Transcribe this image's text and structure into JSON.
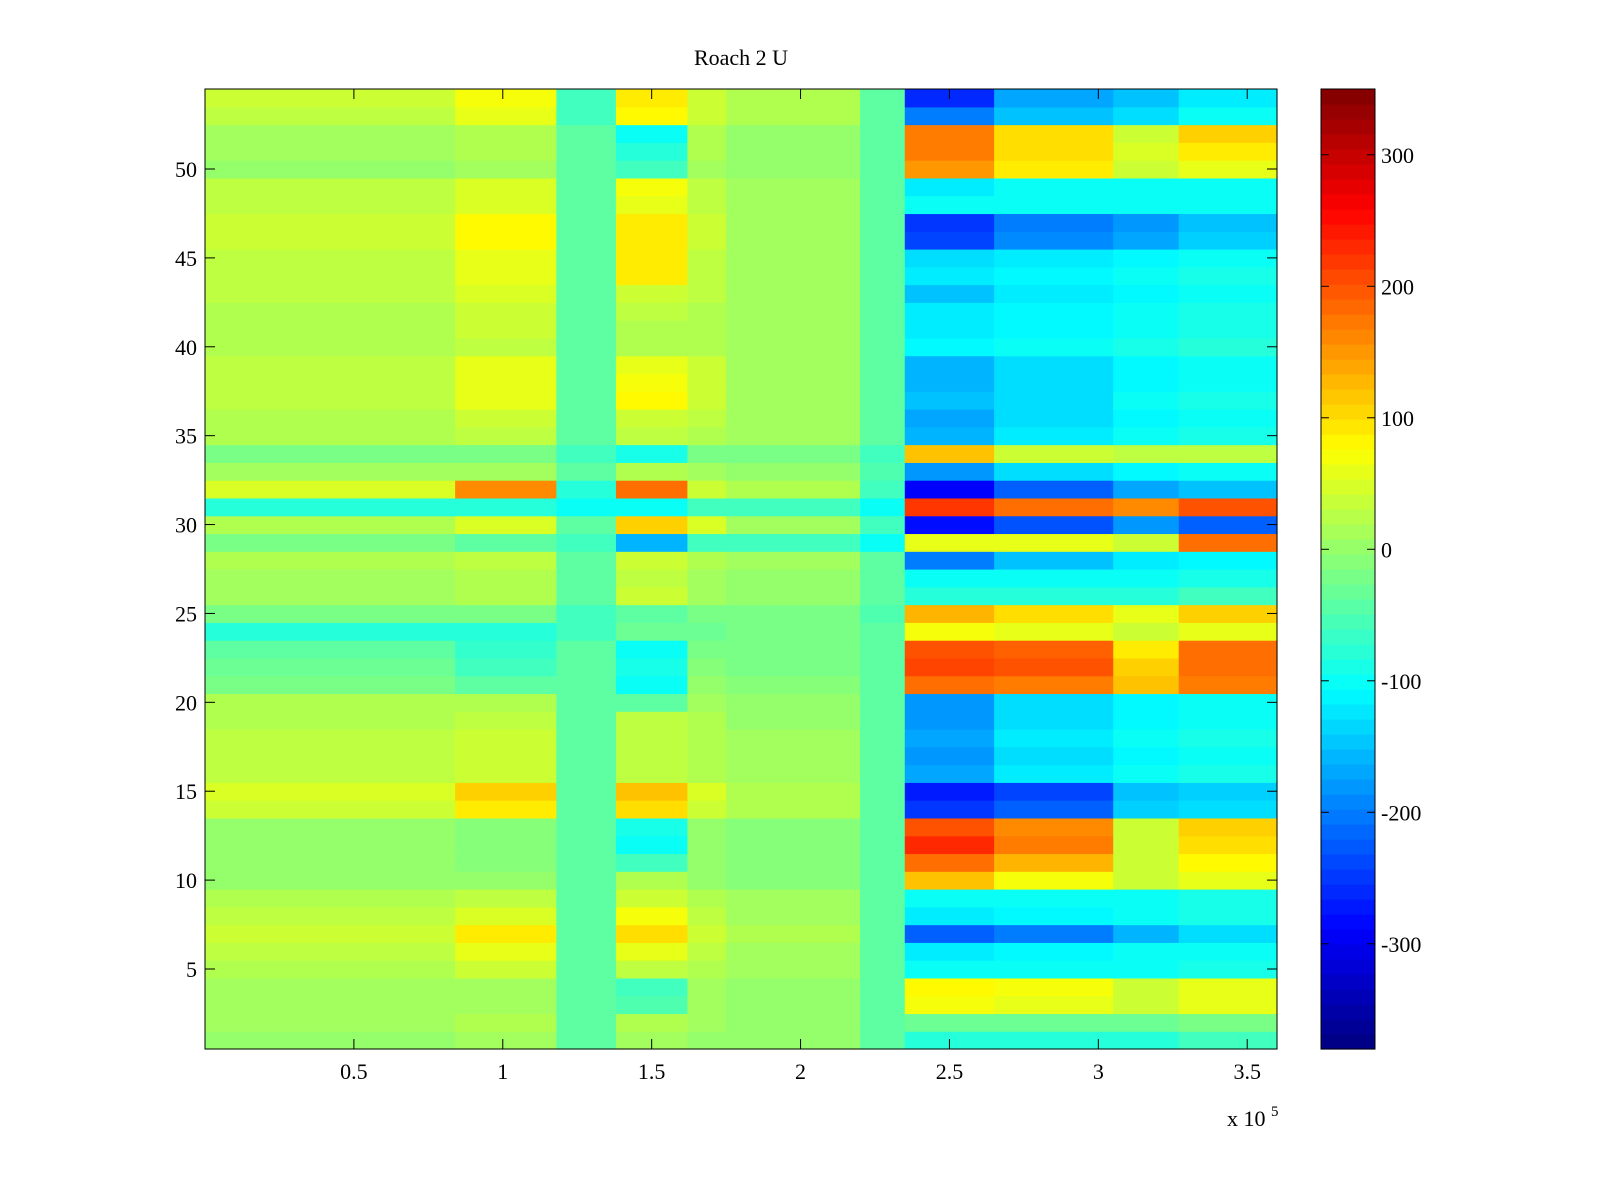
{
  "chart_data": {
    "type": "heatmap",
    "title": "Roach 2 U",
    "xlabel": "",
    "ylabel": "",
    "x_exponent_label": "x 10",
    "x_exponent_power": "5",
    "xlim": [
      0,
      360000
    ],
    "ylim": [
      0.5,
      54.5
    ],
    "x_ticks": [
      {
        "value": 50000,
        "label": "0.5"
      },
      {
        "value": 100000,
        "label": "1"
      },
      {
        "value": 150000,
        "label": "1.5"
      },
      {
        "value": 200000,
        "label": "2"
      },
      {
        "value": 250000,
        "label": "2.5"
      },
      {
        "value": 300000,
        "label": "3"
      },
      {
        "value": 350000,
        "label": "3.5"
      }
    ],
    "y_ticks": [
      {
        "value": 5,
        "label": "5"
      },
      {
        "value": 10,
        "label": "10"
      },
      {
        "value": 15,
        "label": "15"
      },
      {
        "value": 20,
        "label": "20"
      },
      {
        "value": 25,
        "label": "25"
      },
      {
        "value": 30,
        "label": "30"
      },
      {
        "value": 35,
        "label": "35"
      },
      {
        "value": 40,
        "label": "40"
      },
      {
        "value": 45,
        "label": "45"
      },
      {
        "value": 50,
        "label": "50"
      }
    ],
    "colorbar": {
      "colormap": "jet",
      "clim": [
        -380,
        350
      ],
      "ticks": [
        {
          "value": 300,
          "label": "300"
        },
        {
          "value": 200,
          "label": "200"
        },
        {
          "value": 100,
          "label": "100"
        },
        {
          "value": 0,
          "label": "0"
        },
        {
          "value": -100,
          "label": "-100"
        },
        {
          "value": -200,
          "label": "-200"
        },
        {
          "value": -300,
          "label": "-300"
        }
      ]
    },
    "rows": 54,
    "x_segment_edges": [
      0,
      84000,
      118000,
      138000,
      162000,
      175000,
      220000,
      235000,
      265000,
      305000,
      327000,
      360000
    ],
    "row_segment_values": {
      "54": [
        40,
        70,
        -60,
        90,
        40,
        20,
        -40,
        -260,
        -170,
        -150,
        -120
      ],
      "53": [
        30,
        60,
        -60,
        80,
        40,
        20,
        -40,
        -200,
        -150,
        -130,
        -100
      ],
      "52": [
        10,
        20,
        -40,
        -100,
        20,
        0,
        -40,
        170,
        100,
        40,
        110
      ],
      "51": [
        10,
        20,
        -40,
        -80,
        20,
        0,
        -40,
        170,
        100,
        50,
        90
      ],
      "50": [
        0,
        10,
        -40,
        -60,
        10,
        0,
        -40,
        150,
        90,
        40,
        60
      ],
      "49": [
        30,
        50,
        -40,
        70,
        30,
        10,
        -40,
        -120,
        -100,
        -100,
        -100
      ],
      "48": [
        30,
        50,
        -40,
        60,
        30,
        10,
        -40,
        -100,
        -100,
        -100,
        -100
      ],
      "47": [
        40,
        80,
        -40,
        90,
        40,
        10,
        -40,
        -250,
        -200,
        -180,
        -150
      ],
      "46": [
        40,
        80,
        -40,
        90,
        40,
        10,
        -40,
        -240,
        -190,
        -170,
        -140
      ],
      "45": [
        30,
        60,
        -40,
        90,
        30,
        10,
        -40,
        -130,
        -120,
        -110,
        -100
      ],
      "44": [
        30,
        60,
        -40,
        90,
        30,
        10,
        -40,
        -120,
        -110,
        -100,
        -90
      ],
      "43": [
        30,
        50,
        -40,
        40,
        30,
        10,
        -40,
        -150,
        -120,
        -110,
        -100
      ],
      "42": [
        20,
        40,
        -40,
        30,
        20,
        10,
        -40,
        -120,
        -110,
        -100,
        -90
      ],
      "41": [
        20,
        40,
        -40,
        20,
        20,
        10,
        -40,
        -120,
        -110,
        -100,
        -90
      ],
      "40": [
        20,
        30,
        -40,
        20,
        20,
        10,
        -40,
        -110,
        -100,
        -90,
        -80
      ],
      "39": [
        30,
        60,
        -40,
        60,
        40,
        10,
        -40,
        -160,
        -130,
        -110,
        -100
      ],
      "38": [
        30,
        60,
        -40,
        70,
        40,
        10,
        -40,
        -160,
        -130,
        -110,
        -100
      ],
      "37": [
        30,
        60,
        -40,
        80,
        40,
        10,
        -40,
        -150,
        -130,
        -100,
        -90
      ],
      "36": [
        20,
        40,
        -40,
        40,
        30,
        10,
        -40,
        -170,
        -130,
        -110,
        -100
      ],
      "35": [
        20,
        30,
        -40,
        30,
        20,
        10,
        -40,
        -160,
        -120,
        -100,
        -90
      ],
      "34": [
        -20,
        -20,
        -60,
        -90,
        -20,
        -20,
        -60,
        120,
        40,
        30,
        30
      ],
      "33": [
        10,
        10,
        -40,
        20,
        10,
        0,
        -50,
        -180,
        -130,
        -110,
        -100
      ],
      "32": [
        50,
        160,
        -80,
        180,
        40,
        20,
        -60,
        -290,
        -220,
        -170,
        -150
      ],
      "31": [
        -80,
        -80,
        -100,
        -100,
        -60,
        -60,
        -100,
        220,
        180,
        160,
        200
      ],
      "30": [
        20,
        50,
        -40,
        110,
        50,
        10,
        -60,
        -280,
        -230,
        -180,
        -220
      ],
      "29": [
        -20,
        -40,
        -60,
        -160,
        -60,
        -60,
        -100,
        60,
        60,
        40,
        180
      ],
      "28": [
        20,
        30,
        -40,
        40,
        20,
        10,
        -40,
        -200,
        -150,
        -120,
        -110
      ],
      "27": [
        10,
        20,
        -40,
        30,
        10,
        0,
        -40,
        -100,
        -100,
        -100,
        -90
      ],
      "26": [
        10,
        20,
        -40,
        40,
        10,
        0,
        -40,
        -80,
        -80,
        -80,
        -60
      ],
      "25": [
        -20,
        -20,
        -60,
        -40,
        -20,
        -20,
        -50,
        130,
        100,
        60,
        110
      ],
      "24": [
        -80,
        -80,
        -60,
        -30,
        -30,
        -20,
        -40,
        70,
        60,
        40,
        60
      ],
      "23": [
        -40,
        -70,
        -40,
        -100,
        -20,
        -20,
        -40,
        200,
        190,
        90,
        180
      ],
      "22": [
        -30,
        -60,
        -40,
        -90,
        -10,
        -20,
        -40,
        210,
        200,
        110,
        180
      ],
      "21": [
        -20,
        -40,
        -40,
        -100,
        0,
        -10,
        -40,
        180,
        170,
        120,
        170
      ],
      "20": [
        20,
        20,
        -40,
        -40,
        10,
        0,
        -40,
        -180,
        -130,
        -110,
        -100
      ],
      "19": [
        20,
        30,
        -40,
        30,
        20,
        0,
        -40,
        -180,
        -130,
        -110,
        -100
      ],
      "18": [
        30,
        40,
        -40,
        30,
        20,
        10,
        -40,
        -170,
        -120,
        -100,
        -90
      ],
      "17": [
        30,
        40,
        -40,
        30,
        20,
        10,
        -40,
        -180,
        -130,
        -110,
        -100
      ],
      "16": [
        30,
        40,
        -40,
        30,
        20,
        10,
        -40,
        -170,
        -120,
        -100,
        -90
      ],
      "15": [
        50,
        110,
        -40,
        120,
        50,
        20,
        -40,
        -270,
        -240,
        -150,
        -140
      ],
      "14": [
        40,
        90,
        -40,
        100,
        40,
        20,
        -40,
        -250,
        -220,
        -140,
        -130
      ],
      "13": [
        0,
        -10,
        -40,
        -90,
        0,
        -10,
        -40,
        200,
        160,
        40,
        110
      ],
      "12": [
        0,
        -10,
        -40,
        -100,
        0,
        -10,
        -40,
        230,
        170,
        40,
        100
      ],
      "11": [
        0,
        -10,
        -40,
        -60,
        0,
        -10,
        -40,
        180,
        130,
        40,
        80
      ],
      "10": [
        0,
        0,
        -40,
        20,
        0,
        -10,
        -40,
        120,
        70,
        40,
        60
      ],
      "9": [
        20,
        30,
        -40,
        40,
        20,
        10,
        -40,
        -100,
        -100,
        -100,
        -90
      ],
      "8": [
        30,
        50,
        -40,
        70,
        30,
        10,
        -40,
        -120,
        -110,
        -100,
        -90
      ],
      "7": [
        40,
        90,
        -40,
        100,
        40,
        20,
        -40,
        -220,
        -200,
        -160,
        -130
      ],
      "6": [
        30,
        60,
        -40,
        60,
        30,
        10,
        -40,
        -120,
        -110,
        -100,
        -100
      ],
      "5": [
        20,
        40,
        -40,
        30,
        20,
        10,
        -40,
        -100,
        -100,
        -100,
        -90
      ],
      "4": [
        10,
        10,
        -40,
        -60,
        10,
        0,
        -40,
        80,
        70,
        40,
        60
      ],
      "3": [
        10,
        10,
        -40,
        -50,
        10,
        0,
        -40,
        70,
        60,
        40,
        60
      ],
      "2": [
        10,
        20,
        -40,
        20,
        10,
        0,
        -40,
        -30,
        -30,
        -30,
        -20
      ],
      "1": [
        0,
        10,
        -40,
        10,
        0,
        0,
        -40,
        -80,
        -80,
        -80,
        -60
      ]
    }
  }
}
